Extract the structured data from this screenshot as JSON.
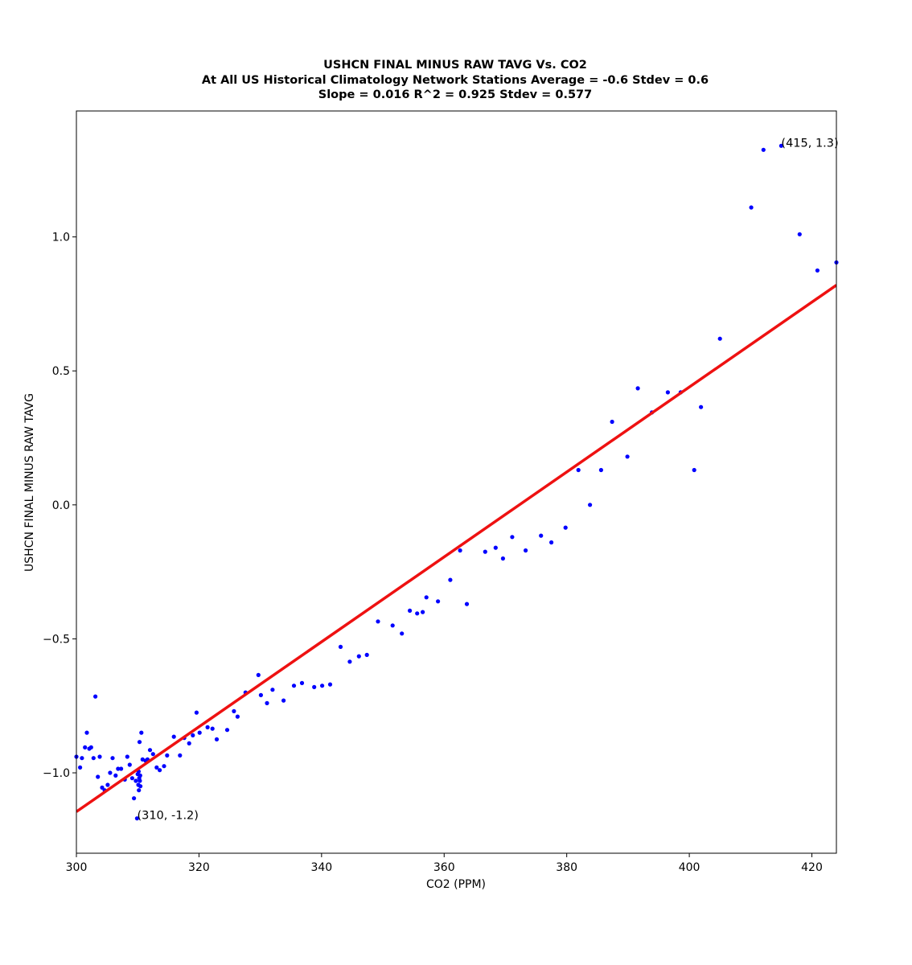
{
  "chart_data": {
    "type": "scatter",
    "title_lines": [
      "USHCN FINAL MINUS RAW TAVG Vs. CO2",
      "At All US Historical Climatology Network Stations Average = -0.6 Stdev = 0.6",
      "Slope = 0.016  R^2 = 0.925 Stdev = 0.577"
    ],
    "xlabel": "CO2 (PPM)",
    "ylabel": "USHCN FINAL MINUS RAW TAVG",
    "xlim": [
      300,
      424
    ],
    "ylim": [
      -1.3,
      1.47
    ],
    "xticks": [
      300,
      320,
      340,
      360,
      380,
      400,
      420
    ],
    "xtick_labels": [
      "300",
      "320",
      "340",
      "360",
      "380",
      "400",
      "420"
    ],
    "yticks": [
      -1.0,
      -0.5,
      0.0,
      0.5,
      1.0
    ],
    "ytick_labels": [
      "−1.0",
      "−0.5",
      "0.0",
      "0.5",
      "1.0"
    ],
    "grid": false,
    "marker_color": "#0000ff",
    "fit_color": "#ee1111",
    "series": [
      {
        "kind": "scatter",
        "points": [
          [
            300.0,
            -0.94
          ],
          [
            300.6,
            -0.98
          ],
          [
            300.9,
            -0.945
          ],
          [
            301.4,
            -0.905
          ],
          [
            301.7,
            -0.85
          ],
          [
            302.1,
            -0.91
          ],
          [
            302.4,
            -0.905
          ],
          [
            302.8,
            -0.945
          ],
          [
            303.1,
            -0.715
          ],
          [
            303.5,
            -1.015
          ],
          [
            303.8,
            -0.94
          ],
          [
            304.2,
            -1.055
          ],
          [
            304.6,
            -1.065
          ],
          [
            305.1,
            -1.045
          ],
          [
            305.5,
            -1.0
          ],
          [
            305.9,
            -0.945
          ],
          [
            306.4,
            -1.01
          ],
          [
            306.8,
            -0.985
          ],
          [
            307.3,
            -0.985
          ],
          [
            307.9,
            -1.025
          ],
          [
            308.3,
            -0.94
          ],
          [
            308.7,
            -0.97
          ],
          [
            309.1,
            -1.02
          ],
          [
            309.4,
            -1.095
          ],
          [
            309.7,
            -1.03
          ],
          [
            309.9,
            -1.17
          ],
          [
            310.0,
            -1.005
          ],
          [
            310.1,
            -1.045
          ],
          [
            310.15,
            -0.995
          ],
          [
            310.2,
            -1.065
          ],
          [
            310.25,
            -1.02
          ],
          [
            310.3,
            -0.885
          ],
          [
            310.35,
            -1.03
          ],
          [
            310.4,
            -1.01
          ],
          [
            310.45,
            -1.05
          ],
          [
            310.6,
            -0.85
          ],
          [
            310.8,
            -0.95
          ],
          [
            311.3,
            -0.955
          ],
          [
            311.6,
            -0.95
          ],
          [
            312.0,
            -0.915
          ],
          [
            312.5,
            -0.93
          ],
          [
            313.1,
            -0.98
          ],
          [
            313.6,
            -0.99
          ],
          [
            314.3,
            -0.975
          ],
          [
            314.8,
            -0.935
          ],
          [
            315.9,
            -0.865
          ],
          [
            316.9,
            -0.935
          ],
          [
            317.6,
            -0.87
          ],
          [
            318.4,
            -0.89
          ],
          [
            319.0,
            -0.86
          ],
          [
            319.6,
            -0.775
          ],
          [
            320.1,
            -0.85
          ],
          [
            321.4,
            -0.83
          ],
          [
            322.2,
            -0.835
          ],
          [
            322.9,
            -0.875
          ],
          [
            324.6,
            -0.84
          ],
          [
            325.7,
            -0.77
          ],
          [
            326.3,
            -0.79
          ],
          [
            327.6,
            -0.7
          ],
          [
            329.7,
            -0.635
          ],
          [
            330.1,
            -0.71
          ],
          [
            331.1,
            -0.74
          ],
          [
            332.0,
            -0.69
          ],
          [
            333.8,
            -0.73
          ],
          [
            335.5,
            -0.675
          ],
          [
            336.8,
            -0.665
          ],
          [
            338.8,
            -0.68
          ],
          [
            340.1,
            -0.675
          ],
          [
            341.4,
            -0.67
          ],
          [
            343.1,
            -0.53
          ],
          [
            344.6,
            -0.585
          ],
          [
            346.1,
            -0.565
          ],
          [
            347.4,
            -0.56
          ],
          [
            349.2,
            -0.435
          ],
          [
            351.6,
            -0.45
          ],
          [
            353.1,
            -0.48
          ],
          [
            354.4,
            -0.395
          ],
          [
            355.6,
            -0.405
          ],
          [
            356.5,
            -0.4
          ],
          [
            357.1,
            -0.345
          ],
          [
            359.0,
            -0.36
          ],
          [
            361.0,
            -0.28
          ],
          [
            362.6,
            -0.17
          ],
          [
            363.7,
            -0.37
          ],
          [
            366.7,
            -0.175
          ],
          [
            368.4,
            -0.16
          ],
          [
            369.6,
            -0.2
          ],
          [
            371.1,
            -0.12
          ],
          [
            373.3,
            -0.17
          ],
          [
            375.8,
            -0.115
          ],
          [
            377.5,
            -0.14
          ],
          [
            379.8,
            -0.085
          ],
          [
            381.9,
            0.13
          ],
          [
            383.8,
            0.0
          ],
          [
            385.6,
            0.13
          ],
          [
            387.4,
            0.31
          ],
          [
            389.9,
            0.18
          ],
          [
            391.6,
            0.435
          ],
          [
            393.9,
            0.345
          ],
          [
            396.5,
            0.42
          ],
          [
            398.6,
            0.42
          ],
          [
            400.8,
            0.13
          ],
          [
            401.9,
            0.365
          ],
          [
            405.0,
            0.62
          ],
          [
            410.1,
            1.11
          ],
          [
            412.1,
            1.325
          ],
          [
            415.0,
            1.34
          ],
          [
            418.0,
            1.01
          ],
          [
            420.9,
            0.875
          ],
          [
            424.0,
            0.905
          ]
        ]
      },
      {
        "kind": "fit_line",
        "x": [
          300,
          424
        ],
        "y": [
          -1.145,
          0.82
        ]
      }
    ],
    "annotations": [
      {
        "text": "(415, 1.3)",
        "x": 415.0,
        "y": 1.34
      },
      {
        "text": "(310, -1.2)",
        "x": 309.9,
        "y": -1.17
      }
    ]
  }
}
